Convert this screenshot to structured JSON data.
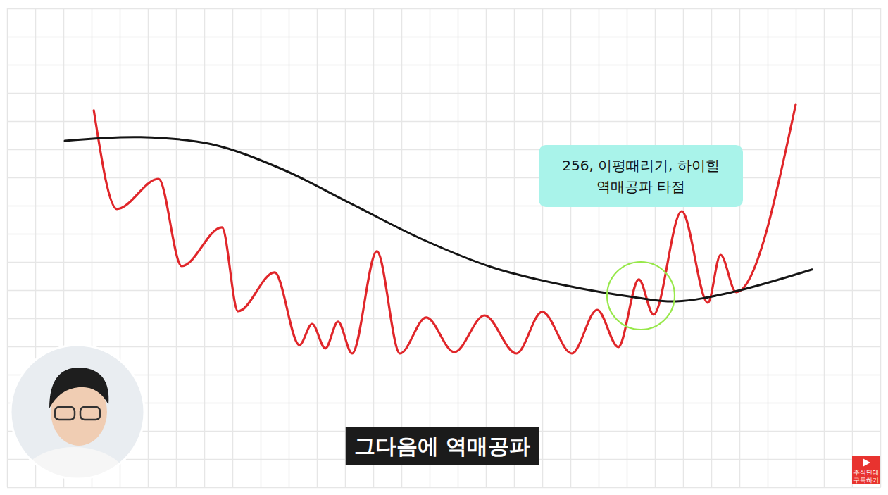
{
  "chart_data": {
    "type": "line",
    "xlim": [
      0,
      31
    ],
    "ylim": [
      0,
      17
    ],
    "xticks": [
      0,
      1,
      2,
      3,
      4,
      5,
      6,
      7,
      8,
      9,
      10,
      11,
      12,
      13,
      14,
      15,
      16,
      17,
      18,
      19,
      20,
      21,
      22,
      23,
      24,
      25,
      26,
      27,
      28,
      29,
      30,
      31
    ],
    "yticks": [
      0,
      1,
      2,
      3,
      4,
      5,
      6,
      7,
      8,
      9,
      10,
      11,
      12,
      13,
      14,
      15,
      16,
      17
    ],
    "grid": true,
    "tick_labels": false,
    "series": [
      {
        "color": "#e0262a",
        "x": [
          3.08,
          3.9,
          5.38,
          6.2,
          7.63,
          8.2,
          9.5,
          10.38,
          10.83,
          11.3,
          11.75,
          12.25,
          13.13,
          13.95,
          14.88,
          15.88,
          16.95,
          18.08,
          19,
          20.05,
          20.95,
          21.7,
          22.43,
          22.95,
          23.95,
          24.88,
          25.33,
          25.88,
          28
        ],
        "values": [
          13.38,
          9.88,
          10.95,
          7.85,
          9.23,
          6.25,
          7.63,
          5.05,
          5.8,
          4.93,
          5.88,
          4.75,
          8.38,
          4.75,
          6.03,
          4.8,
          6.1,
          4.75,
          6.23,
          4.75,
          6.3,
          4.98,
          7.38,
          6.13,
          9.8,
          6.55,
          8.25,
          6.93,
          13.6
        ]
      },
      {
        "color": "#151515",
        "x": [
          2.05,
          4.75,
          7.25,
          9.75,
          12.25,
          14.75,
          17.25,
          19.75,
          22.25,
          23.75,
          25.75,
          28.58
        ],
        "values": [
          12.3,
          12.43,
          12.18,
          11.3,
          10.05,
          8.8,
          7.8,
          7.18,
          6.75,
          6.6,
          6.93,
          7.73
        ]
      }
    ],
    "annotations": [
      {
        "lines": [
          "256, 이평때리기, 하이힐",
          "역매공파 타점"
        ],
        "x": 22.5,
        "y": 11.05
      }
    ],
    "highlight": {
      "x": 22.5,
      "y": 6.8
    },
    "caption": "그다음에 역매공파",
    "logo": [
      "주식단테",
      "구독하기"
    ]
  }
}
